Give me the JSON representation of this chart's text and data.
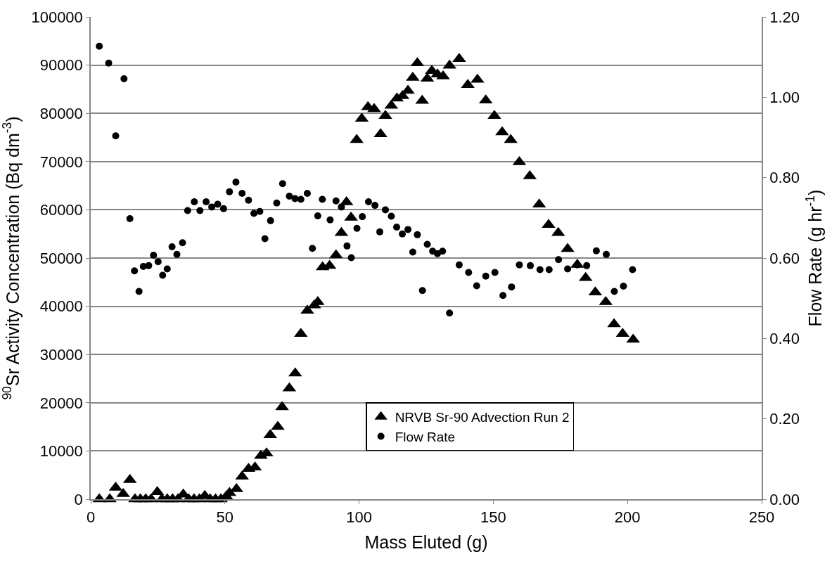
{
  "chart_data": {
    "type": "scatter",
    "xlabel": "Mass Eluted (g)",
    "ylabel": "$^{90}$Sr Activity Concentration (Bq dm$^{-3}$)",
    "y2label": "Flow Rate (g hr$^{-1}$)",
    "xlim": [
      0,
      250
    ],
    "xticks": [
      0,
      50,
      100,
      150,
      200,
      250
    ],
    "ylim": [
      0,
      100000
    ],
    "yticks": [
      0,
      10000,
      20000,
      30000,
      40000,
      50000,
      60000,
      70000,
      80000,
      90000,
      100000
    ],
    "y2lim": [
      0,
      1.2
    ],
    "y2ticks": [
      {
        "value": 0,
        "label": "0.00"
      },
      {
        "value": 0.2,
        "label": "0.20"
      },
      {
        "value": 0.4,
        "label": "0.40"
      },
      {
        "value": 0.6,
        "label": "0.60"
      },
      {
        "value": 0.8,
        "label": "0.80"
      },
      {
        "value": 1.0,
        "label": "1.00"
      },
      {
        "value": 1.2,
        "label": "1.20"
      }
    ],
    "grid": "y",
    "legend": "bottom",
    "series": [
      {
        "name": "NRVB Sr-90 Advection Run 2",
        "color": "#000000",
        "marker": "triangle",
        "x": [
          3.2,
          7.1,
          9.3,
          12.1,
          14.6,
          16.5,
          18.5,
          20.5,
          22.5,
          24.8,
          26.5,
          28.5,
          30.5,
          32.5,
          34.5,
          36.5,
          38.5,
          40.5,
          42.5,
          44.5,
          46.5,
          48.5,
          50.5,
          51.7,
          54.3,
          56.4,
          58.8,
          61.2,
          63.4,
          65.5,
          66.9,
          69.7,
          71.3,
          74.0,
          76.2,
          78.3,
          80.7,
          83.3,
          84.6,
          86.4,
          89.0,
          91.4,
          93.4,
          95.3,
          97.0,
          99.1,
          101.0,
          103.3,
          105.6,
          108.0,
          109.8,
          112.0,
          114.1,
          116.2,
          118.2,
          120.0,
          121.7,
          123.5,
          125.4,
          127.1,
          129.2,
          131.3,
          133.7,
          137.3,
          140.5,
          144.1,
          147.2,
          150.4,
          153.3,
          156.5,
          159.7,
          163.6,
          167.1,
          170.6,
          174.2,
          177.7,
          181.3,
          184.4,
          188.0,
          191.9,
          195.0,
          198.2,
          202.1
        ],
        "values": [
          0,
          0,
          2400,
          1100,
          4000,
          0,
          0,
          0,
          0,
          1500,
          0,
          0,
          0,
          0,
          1000,
          0,
          0,
          0,
          700,
          0,
          0,
          0,
          600,
          1300,
          2100,
          4700,
          6300,
          6600,
          9000,
          9500,
          13300,
          15000,
          19100,
          23000,
          26100,
          34300,
          39100,
          40200,
          40900,
          48100,
          48400,
          50600,
          55200,
          61600,
          58400,
          74500,
          78900,
          81300,
          80900,
          75700,
          79500,
          81600,
          83100,
          83600,
          84700,
          87400,
          90400,
          82600,
          87200,
          88800,
          88100,
          87700,
          89900,
          91300,
          85900,
          87000,
          82700,
          79500,
          76100,
          74500,
          69900,
          67000,
          61100,
          56900,
          55200,
          51900,
          48600,
          45900,
          42900,
          40900,
          36300,
          34300,
          33100
        ]
      },
      {
        "name": "Flow Rate",
        "color": "#000000",
        "marker": "circle",
        "axis": "y2",
        "x": [
          3.2,
          6.7,
          9.3,
          12.4,
          14.6,
          16.3,
          18.0,
          19.6,
          21.6,
          23.4,
          25.1,
          26.8,
          28.5,
          30.3,
          32.1,
          34.2,
          36.1,
          38.6,
          40.7,
          43.0,
          45.1,
          47.3,
          49.5,
          51.7,
          54.1,
          56.4,
          58.8,
          60.8,
          63.0,
          64.9,
          67.0,
          69.3,
          71.5,
          74.0,
          76.1,
          78.3,
          80.7,
          82.6,
          84.6,
          86.3,
          89.2,
          91.4,
          93.4,
          95.5,
          97.1,
          99.2,
          101.2,
          103.5,
          105.9,
          107.7,
          109.8,
          112.0,
          114.0,
          116.1,
          118.2,
          120.0,
          121.7,
          123.6,
          125.4,
          127.4,
          129.2,
          131.1,
          133.7,
          137.3,
          140.8,
          143.8,
          147.2,
          150.6,
          153.6,
          156.8,
          159.7,
          163.8,
          167.4,
          170.8,
          174.3,
          177.7,
          181.3,
          184.8,
          188.4,
          192.1,
          195.1,
          198.5,
          201.9
        ],
        "values": [
          1.127,
          1.085,
          0.904,
          1.046,
          0.698,
          0.568,
          0.517,
          0.579,
          0.581,
          0.607,
          0.591,
          0.557,
          0.573,
          0.628,
          0.609,
          0.638,
          0.718,
          0.74,
          0.718,
          0.74,
          0.727,
          0.734,
          0.723,
          0.765,
          0.789,
          0.761,
          0.744,
          0.711,
          0.716,
          0.648,
          0.693,
          0.737,
          0.785,
          0.754,
          0.748,
          0.746,
          0.761,
          0.624,
          0.705,
          0.746,
          0.695,
          0.742,
          0.727,
          0.63,
          0.601,
          0.674,
          0.703,
          0.74,
          0.731,
          0.665,
          0.72,
          0.704,
          0.677,
          0.66,
          0.671,
          0.615,
          0.658,
          0.519,
          0.634,
          0.617,
          0.611,
          0.617,
          0.463,
          0.583,
          0.564,
          0.531,
          0.555,
          0.564,
          0.507,
          0.528,
          0.583,
          0.581,
          0.571,
          0.571,
          0.596,
          0.573,
          0.583,
          0.581,
          0.618,
          0.609,
          0.517,
          0.53,
          0.571
        ]
      }
    ]
  }
}
